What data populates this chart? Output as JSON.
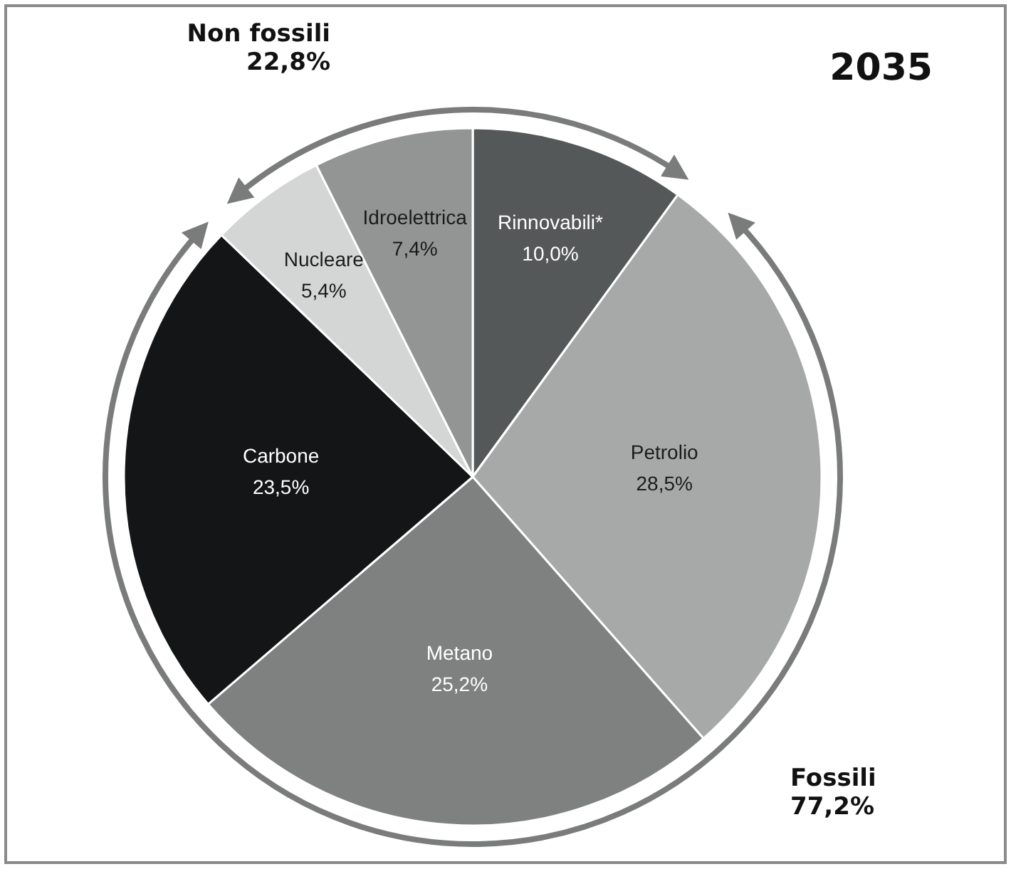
{
  "chart_data": {
    "type": "pie",
    "title": "2035",
    "categories": [
      "Rinnovabili*",
      "Petrolio",
      "Metano",
      "Carbone",
      "Nucleare",
      "Idroelettrica"
    ],
    "values": [
      10.0,
      28.5,
      25.2,
      23.5,
      5.4,
      7.4
    ],
    "value_labels": [
      "10,0%",
      "28,5%",
      "25,2%",
      "23,5%",
      "5,4%",
      "7,4%"
    ],
    "colors": [
      "#555858",
      "#a7a9a9",
      "#7f8080",
      "#131516",
      "#d4d5d5",
      "#939494"
    ],
    "annotations": [
      {
        "text": "Non fossili\n22,8%"
      },
      {
        "text": "Fossili\n77,2%"
      }
    ],
    "legend": false
  }
}
